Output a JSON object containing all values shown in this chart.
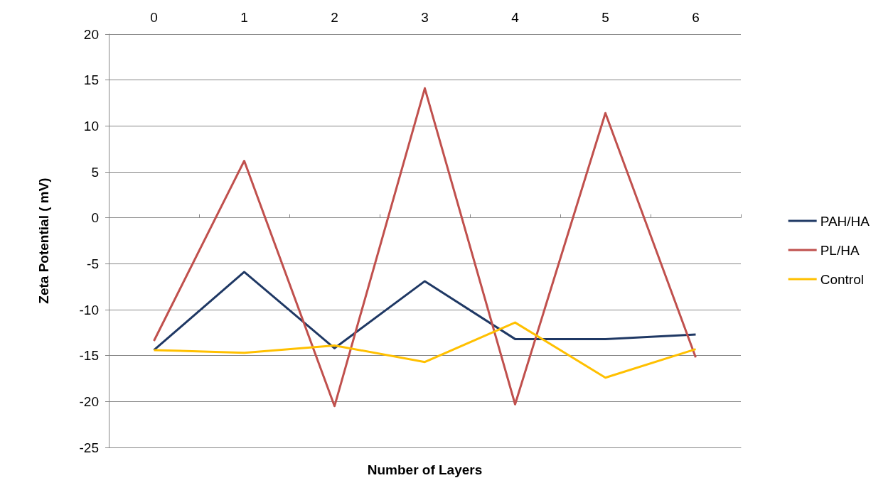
{
  "chart_data": {
    "type": "line",
    "xlabel": "Number of Layers",
    "ylabel": "Zeta Potential ( mV)",
    "categories": [
      "0",
      "1",
      "2",
      "3",
      "4",
      "5",
      "6"
    ],
    "series": [
      {
        "name": "PAH/HA",
        "color": "#1f3864",
        "values": [
          -14.4,
          -5.9,
          -14.2,
          -6.9,
          -13.2,
          -13.2,
          -12.7
        ]
      },
      {
        "name": "PL/HA",
        "color": "#c0504d",
        "values": [
          -13.4,
          6.2,
          -20.5,
          14.1,
          -20.3,
          11.4,
          -15.2
        ]
      },
      {
        "name": "Control",
        "color": "#ffc000",
        "values": [
          -14.4,
          -14.7,
          -13.9,
          -15.7,
          -11.4,
          -17.4,
          -14.3
        ]
      }
    ],
    "ylim": [
      -25,
      20
    ],
    "yticks": [
      -25,
      -20,
      -15,
      -10,
      -5,
      0,
      5,
      10,
      15,
      20
    ],
    "grid": "y",
    "legend": "right",
    "marker": "none",
    "line_style": "solid"
  }
}
